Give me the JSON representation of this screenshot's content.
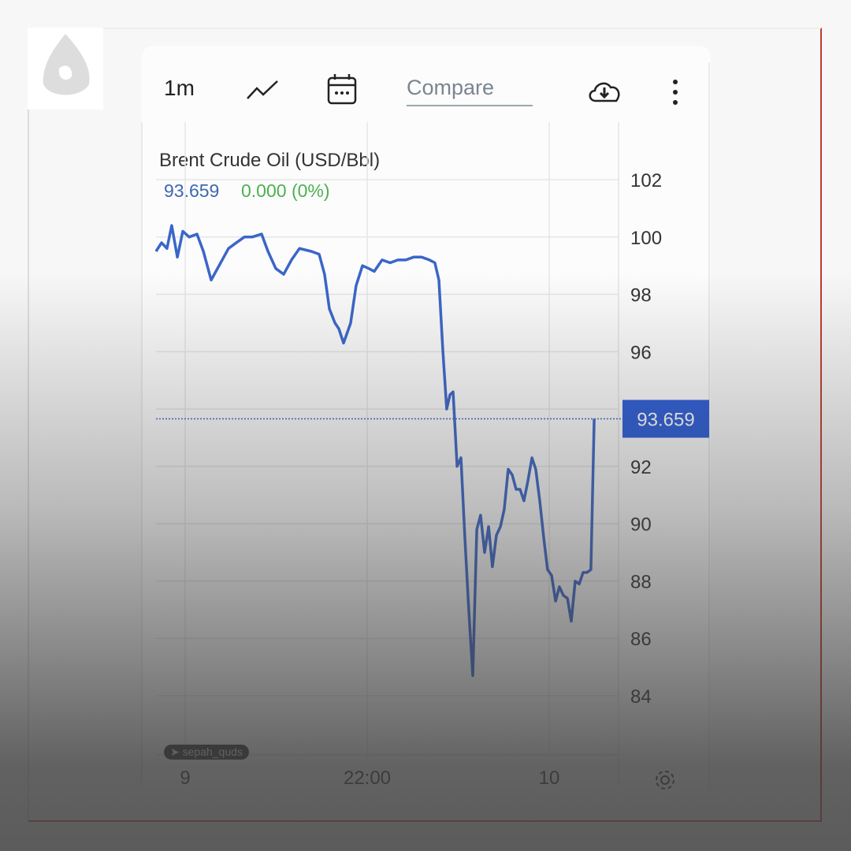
{
  "toolbar": {
    "interval": "1m",
    "chart_type_icon": "line-chart-icon",
    "calendar_icon": "calendar-icon",
    "compare_placeholder": "Compare",
    "download_icon": "cloud-download-icon",
    "menu_icon": "more-vertical-icon"
  },
  "watermark": "sepah_quds",
  "settings_icon": "gear-icon",
  "colors": {
    "line": "#3a66c9",
    "price_tag": "#2a5bd7",
    "change": "#4cb050",
    "frame": "#c0392b"
  },
  "chart_data": {
    "type": "line",
    "title": "Brent Crude Oil (USD/Bbl)",
    "last_price": "93.659",
    "change": "0.000 (0%)",
    "price_tag": "93.659",
    "ylim": [
      82,
      104
    ],
    "yticks": [
      84,
      86,
      88,
      90,
      92,
      94,
      96,
      98,
      100,
      102
    ],
    "ytick_labels": [
      "84",
      "86",
      "88",
      "90",
      "92",
      "",
      "96",
      "98",
      "100",
      "102"
    ],
    "xticks": [
      {
        "pos": 0,
        "label": "9"
      },
      {
        "pos": 1,
        "label": "22:00"
      },
      {
        "pos": 2,
        "label": "10"
      }
    ],
    "grid": true,
    "points": [
      [
        -0.16,
        99.5
      ],
      [
        -0.13,
        99.8
      ],
      [
        -0.1,
        99.6
      ],
      [
        -0.074,
        100.4
      ],
      [
        -0.043,
        99.3
      ],
      [
        -0.013,
        100.2
      ],
      [
        0.022,
        100.0
      ],
      [
        0.065,
        100.1
      ],
      [
        0.1,
        99.5
      ],
      [
        0.143,
        98.5
      ],
      [
        0.186,
        99.0
      ],
      [
        0.238,
        99.6
      ],
      [
        0.281,
        99.8
      ],
      [
        0.325,
        100.0
      ],
      [
        0.368,
        100.0
      ],
      [
        0.42,
        100.1
      ],
      [
        0.455,
        99.5
      ],
      [
        0.498,
        98.9
      ],
      [
        0.541,
        98.7
      ],
      [
        0.584,
        99.2
      ],
      [
        0.628,
        99.6
      ],
      [
        0.693,
        99.5
      ],
      [
        0.736,
        99.4
      ],
      [
        0.766,
        98.7
      ],
      [
        0.792,
        97.5
      ],
      [
        0.823,
        97.0
      ],
      [
        0.844,
        96.8
      ],
      [
        0.87,
        96.3
      ],
      [
        0.909,
        97.0
      ],
      [
        0.939,
        98.3
      ],
      [
        0.974,
        99.0
      ],
      [
        1.009,
        98.9
      ],
      [
        1.039,
        98.8
      ],
      [
        1.082,
        99.2
      ],
      [
        1.126,
        99.1
      ],
      [
        1.169,
        99.2
      ],
      [
        1.212,
        99.2
      ],
      [
        1.255,
        99.3
      ],
      [
        1.299,
        99.3
      ],
      [
        1.342,
        99.2
      ],
      [
        1.372,
        99.1
      ],
      [
        1.394,
        98.5
      ],
      [
        1.416,
        96.0
      ],
      [
        1.437,
        94.0
      ],
      [
        1.455,
        94.5
      ],
      [
        1.472,
        94.6
      ],
      [
        1.494,
        92.0
      ],
      [
        1.515,
        92.3
      ],
      [
        1.537,
        89.5
      ],
      [
        1.558,
        87.0
      ],
      [
        1.58,
        84.7
      ],
      [
        1.602,
        89.8
      ],
      [
        1.623,
        90.3
      ],
      [
        1.645,
        89.0
      ],
      [
        1.667,
        89.9
      ],
      [
        1.688,
        88.5
      ],
      [
        1.71,
        89.6
      ],
      [
        1.732,
        89.9
      ],
      [
        1.753,
        90.5
      ],
      [
        1.775,
        91.9
      ],
      [
        1.797,
        91.7
      ],
      [
        1.818,
        91.2
      ],
      [
        1.84,
        91.2
      ],
      [
        1.861,
        90.8
      ],
      [
        1.883,
        91.5
      ],
      [
        1.905,
        92.3
      ],
      [
        1.926,
        91.9
      ],
      [
        1.948,
        90.8
      ],
      [
        1.97,
        89.5
      ],
      [
        1.991,
        88.4
      ],
      [
        2.013,
        88.2
      ],
      [
        2.035,
        87.3
      ],
      [
        2.056,
        87.8
      ],
      [
        2.078,
        87.5
      ],
      [
        2.1,
        87.4
      ],
      [
        2.121,
        86.6
      ],
      [
        2.143,
        88.0
      ],
      [
        2.165,
        87.9
      ],
      [
        2.186,
        88.3
      ],
      [
        2.208,
        88.3
      ],
      [
        2.229,
        88.4
      ],
      [
        2.247,
        93.659
      ]
    ]
  }
}
